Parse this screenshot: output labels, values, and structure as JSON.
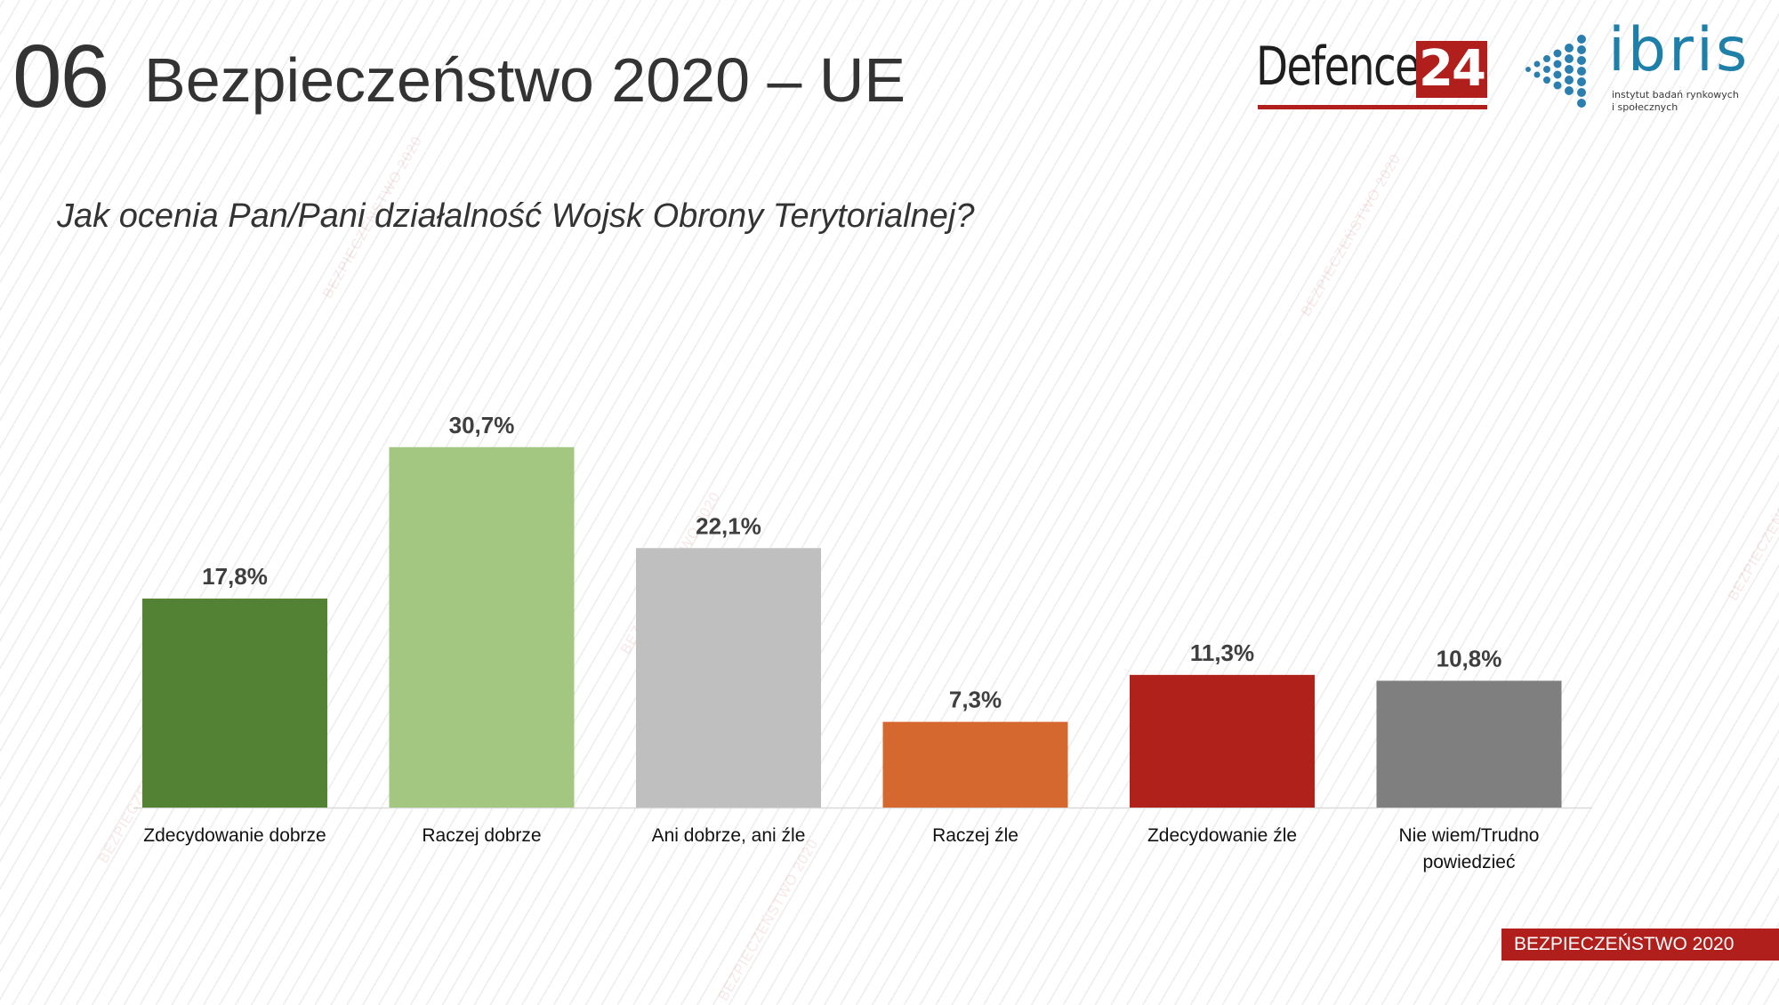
{
  "header": {
    "slide_number": "06",
    "title": "Bezpieczeństwo 2020 – UE",
    "question": "Jak ocenia Pan/Pani działalność Wojsk Obrony Terytorialnej?"
  },
  "logos": {
    "defence_word": "Defence",
    "defence_number": "24",
    "ibris_word": "ibris",
    "ibris_tagline_1": "instytut badań rynkowych",
    "ibris_tagline_2": "i społecznych"
  },
  "footer": {
    "badge": "BEZPIECZEŃSTWO 2020"
  },
  "watermark_text": "BEZPIECZEŃSTWO 2020",
  "colors": {
    "text": "#333333",
    "brand_red": "#b01f1c",
    "ibris_blue": "#1e7fa8"
  },
  "chart_data": {
    "type": "bar",
    "title": "",
    "xlabel": "",
    "ylabel": "",
    "ylim": [
      0,
      32
    ],
    "grid": false,
    "categories": [
      "Zdecydowanie dobrze",
      "Raczej dobrze",
      "Ani dobrze, ani źle",
      "Raczej źle",
      "Zdecydowanie źle",
      "Nie wiem/Trudno powiedzieć"
    ],
    "category_lines": [
      [
        "Zdecydowanie dobrze"
      ],
      [
        "Raczej dobrze"
      ],
      [
        "Ani dobrze, ani źle"
      ],
      [
        "Raczej źle"
      ],
      [
        "Zdecydowanie źle"
      ],
      [
        "Nie wiem/Trudno",
        "powiedzieć"
      ]
    ],
    "values": [
      17.8,
      30.7,
      22.1,
      7.3,
      11.3,
      10.8
    ],
    "value_labels": [
      "17,8%",
      "30,7%",
      "22,1%",
      "7,3%",
      "11,3%",
      "10,8%"
    ],
    "bar_colors": [
      "#548235",
      "#a3c681",
      "#bfbfbf",
      "#d4682e",
      "#b0211b",
      "#7f7f7f"
    ]
  }
}
